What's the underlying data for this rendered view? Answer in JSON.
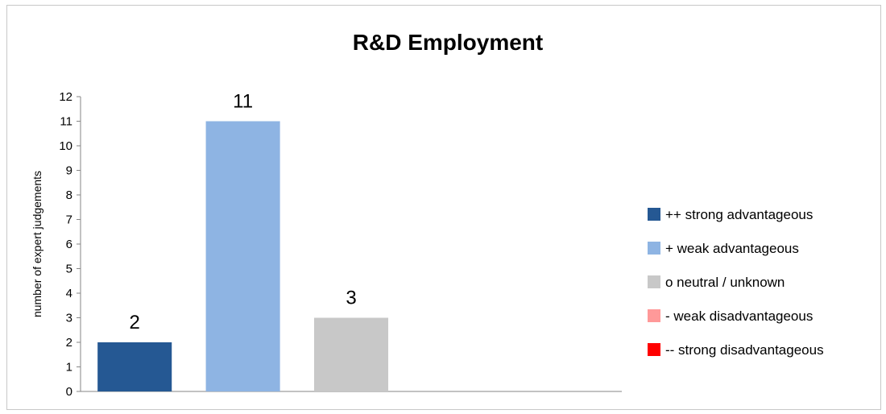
{
  "chart_data": {
    "type": "bar",
    "title": "R&D Employment",
    "ylabel": "number of expert judgements",
    "ylim": [
      0,
      12
    ],
    "yticks": [
      0,
      1,
      2,
      3,
      4,
      5,
      6,
      7,
      8,
      9,
      10,
      11,
      12
    ],
    "categories": [
      "++ strong advantageous",
      "+ weak advantageous",
      "o neutral / unknown",
      "- weak disadvantageous",
      "-- strong disadvantageous"
    ],
    "values": [
      2,
      11,
      3,
      0,
      0
    ],
    "data_labels": [
      "2",
      "11",
      "3",
      "",
      ""
    ],
    "colors": [
      "#255893",
      "#8eb4e3",
      "#c8c8c8",
      "#ff9999",
      "#ff0000"
    ],
    "legend_position": "right",
    "grid": false
  }
}
